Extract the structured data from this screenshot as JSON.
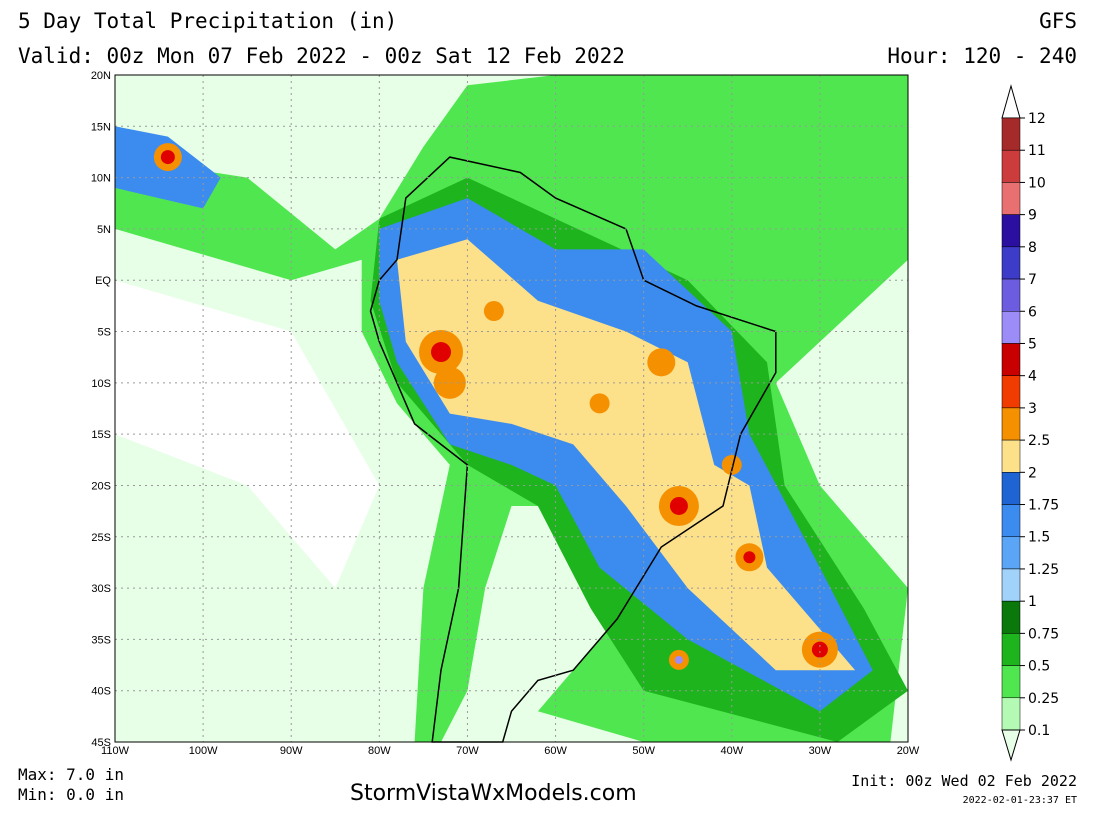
{
  "header": {
    "title": "5 Day Total Precipitation (in)",
    "model": "GFS",
    "valid": "Valid: 00z Mon 07 Feb 2022 - 00z Sat 12 Feb 2022",
    "hour": "Hour: 120 - 240"
  },
  "axes": {
    "lat": [
      "20N",
      "15N",
      "10N",
      "5N",
      "EQ",
      "5S",
      "10S",
      "15S",
      "20S",
      "25S",
      "30S",
      "35S",
      "40S",
      "45S"
    ],
    "lon": [
      "110W",
      "100W",
      "90W",
      "80W",
      "70W",
      "60W",
      "50W",
      "40W",
      "30W",
      "20W"
    ]
  },
  "colorbar": [
    {
      "label": "12",
      "color": "#a52a2a"
    },
    {
      "label": "11",
      "color": "#cc3c3c"
    },
    {
      "label": "10",
      "color": "#e87070"
    },
    {
      "label": "9",
      "color": "#2a0fa0"
    },
    {
      "label": "8",
      "color": "#3c3cc8"
    },
    {
      "label": "7",
      "color": "#6c5ce0"
    },
    {
      "label": "6",
      "color": "#9c8cf8"
    },
    {
      "label": "5",
      "color": "#c80000"
    },
    {
      "label": "4",
      "color": "#f03c00"
    },
    {
      "label": "3",
      "color": "#f59100"
    },
    {
      "label": "2.5",
      "color": "#fce08a"
    },
    {
      "label": "2",
      "color": "#1e64d2"
    },
    {
      "label": "1.75",
      "color": "#3c8cf0"
    },
    {
      "label": "1.5",
      "color": "#5aa5f5"
    },
    {
      "label": "1.25",
      "color": "#a0d2fa"
    },
    {
      "label": "1",
      "color": "#0a780a"
    },
    {
      "label": "0.75",
      "color": "#1eb41e"
    },
    {
      "label": "0.5",
      "color": "#50e650"
    },
    {
      "label": "0.25",
      "color": "#b4fab4"
    },
    {
      "label": "0.1",
      "color": "#e6ffe6"
    }
  ],
  "footer": {
    "max": "Max: 7.0 in",
    "min": "Min: 0.0 in",
    "site": "StormVistaWxModels.com",
    "init": "Init: 00z Wed 02 Feb 2022",
    "stamp": "2022-02-01-23:37 ET"
  }
}
